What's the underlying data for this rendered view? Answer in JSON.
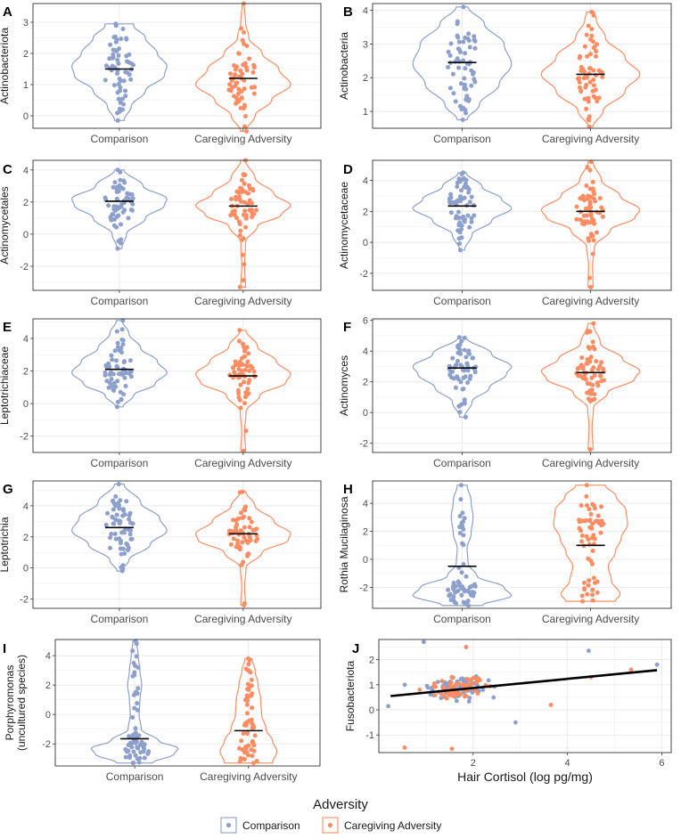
{
  "colors": {
    "comparison": "#8da0cb",
    "adversity": "#fc8d62",
    "grid": "#ebebeb",
    "frame": "#333333",
    "mean": "#000000"
  },
  "legend": {
    "title": "Adversity",
    "items": [
      "Comparison",
      "Caregiving Adversity"
    ]
  },
  "chart_data": [
    {
      "type": "violin",
      "label": "A",
      "ylabel": "Actinobacteriota",
      "categories": [
        "Comparison",
        "Caregiving Adversity"
      ],
      "ylim": [
        -0.4,
        3.6
      ],
      "yticks": [
        0,
        1,
        2,
        3
      ],
      "series": [
        {
          "name": "Comparison",
          "range": [
            -0.15,
            2.95
          ],
          "mean": 1.5,
          "shape": [
            [
              -0.15,
              0.1
            ],
            [
              0.3,
              0.25
            ],
            [
              0.8,
              0.55
            ],
            [
              1.3,
              0.95
            ],
            [
              1.6,
              1.0
            ],
            [
              2.0,
              0.8
            ],
            [
              2.5,
              0.55
            ],
            [
              2.9,
              0.3
            ]
          ],
          "n": 60
        },
        {
          "name": "Caregiving Adversity",
          "range": [
            -0.5,
            3.6
          ],
          "mean": 1.2,
          "shape": [
            [
              -0.5,
              0.05
            ],
            [
              0.0,
              0.25
            ],
            [
              0.5,
              0.6
            ],
            [
              1.0,
              1.0
            ],
            [
              1.5,
              0.75
            ],
            [
              2.0,
              0.4
            ],
            [
              2.5,
              0.12
            ],
            [
              3.0,
              0.05
            ],
            [
              3.6,
              0.02
            ]
          ],
          "n": 58
        }
      ]
    },
    {
      "type": "violin",
      "label": "B",
      "ylabel": "Actinobacteria",
      "categories": [
        "Comparison",
        "Caregiving Adversity"
      ],
      "ylim": [
        0.5,
        4.2
      ],
      "yticks": [
        1,
        2,
        3,
        4
      ],
      "series": [
        {
          "name": "Comparison",
          "range": [
            0.75,
            4.1
          ],
          "mean": 2.45,
          "shape": [
            [
              0.75,
              0.1
            ],
            [
              1.2,
              0.35
            ],
            [
              1.8,
              0.75
            ],
            [
              2.4,
              1.0
            ],
            [
              3.0,
              0.85
            ],
            [
              3.6,
              0.45
            ],
            [
              4.1,
              0.12
            ]
          ],
          "n": 60
        },
        {
          "name": "Caregiving Adversity",
          "range": [
            0.55,
            3.95
          ],
          "mean": 2.1,
          "shape": [
            [
              0.55,
              0.05
            ],
            [
              1.0,
              0.25
            ],
            [
              1.6,
              0.7
            ],
            [
              2.1,
              1.0
            ],
            [
              2.6,
              0.7
            ],
            [
              3.2,
              0.3
            ],
            [
              3.7,
              0.12
            ],
            [
              3.95,
              0.08
            ]
          ],
          "n": 58
        }
      ]
    },
    {
      "type": "violin",
      "label": "C",
      "ylabel": "Actinomycetales",
      "categories": [
        "Comparison",
        "Caregiving Adversity"
      ],
      "ylim": [
        -3.5,
        4.6
      ],
      "yticks": [
        -2,
        0,
        2,
        4
      ],
      "series": [
        {
          "name": "Comparison",
          "range": [
            -0.9,
            4.0
          ],
          "mean": 2.05,
          "shape": [
            [
              -0.9,
              0.05
            ],
            [
              0.0,
              0.15
            ],
            [
              1.0,
              0.55
            ],
            [
              1.8,
              0.95
            ],
            [
              2.2,
              1.0
            ],
            [
              3.0,
              0.5
            ],
            [
              4.0,
              0.1
            ]
          ],
          "n": 60
        },
        {
          "name": "Caregiving Adversity",
          "range": [
            -3.3,
            4.6
          ],
          "mean": 1.75,
          "shape": [
            [
              -3.3,
              0.05
            ],
            [
              -2.0,
              0.03
            ],
            [
              -0.5,
              0.05
            ],
            [
              0.5,
              0.3
            ],
            [
              1.2,
              0.8
            ],
            [
              1.8,
              1.0
            ],
            [
              2.5,
              0.65
            ],
            [
              3.5,
              0.25
            ],
            [
              4.6,
              0.05
            ]
          ],
          "n": 58
        }
      ]
    },
    {
      "type": "violin",
      "label": "D",
      "ylabel": "Actinomycetaceae",
      "categories": [
        "Comparison",
        "Caregiving Adversity"
      ],
      "ylim": [
        -3.1,
        5.3
      ],
      "yticks": [
        -2,
        0,
        2,
        4
      ],
      "series": [
        {
          "name": "Comparison",
          "range": [
            -0.5,
            4.5
          ],
          "mean": 2.35,
          "shape": [
            [
              -0.5,
              0.05
            ],
            [
              0.5,
              0.2
            ],
            [
              1.4,
              0.6
            ],
            [
              2.2,
              1.0
            ],
            [
              2.8,
              0.8
            ],
            [
              3.6,
              0.4
            ],
            [
              4.5,
              0.08
            ]
          ],
          "n": 60
        },
        {
          "name": "Caregiving Adversity",
          "range": [
            -2.9,
            5.2
          ],
          "mean": 2.0,
          "shape": [
            [
              -2.9,
              0.05
            ],
            [
              -1.5,
              0.04
            ],
            [
              -0.3,
              0.08
            ],
            [
              0.8,
              0.4
            ],
            [
              1.6,
              0.9
            ],
            [
              2.1,
              1.0
            ],
            [
              3.0,
              0.6
            ],
            [
              4.0,
              0.22
            ],
            [
              5.2,
              0.05
            ]
          ],
          "n": 58
        }
      ]
    },
    {
      "type": "violin",
      "label": "E",
      "ylabel": "Leptotrichiaceae",
      "categories": [
        "Comparison",
        "Caregiving Adversity"
      ],
      "ylim": [
        -3.0,
        5.2
      ],
      "yticks": [
        -2,
        0,
        2,
        4
      ],
      "series": [
        {
          "name": "Comparison",
          "range": [
            -0.2,
            5.1
          ],
          "mean": 2.1,
          "shape": [
            [
              -0.2,
              0.08
            ],
            [
              0.5,
              0.3
            ],
            [
              1.2,
              0.75
            ],
            [
              1.9,
              1.0
            ],
            [
              2.6,
              0.8
            ],
            [
              3.4,
              0.45
            ],
            [
              4.3,
              0.2
            ],
            [
              5.1,
              0.06
            ]
          ],
          "n": 60
        },
        {
          "name": "Caregiving Adversity",
          "range": [
            -2.9,
            4.5
          ],
          "mean": 1.7,
          "shape": [
            [
              -2.9,
              0.05
            ],
            [
              -1.8,
              0.03
            ],
            [
              -0.5,
              0.06
            ],
            [
              0.5,
              0.35
            ],
            [
              1.3,
              0.9
            ],
            [
              1.8,
              1.0
            ],
            [
              2.6,
              0.7
            ],
            [
              3.5,
              0.3
            ],
            [
              4.5,
              0.06
            ]
          ],
          "n": 58
        }
      ]
    },
    {
      "type": "violin",
      "label": "F",
      "ylabel": "Actinomyces",
      "categories": [
        "Comparison",
        "Caregiving Adversity"
      ],
      "ylim": [
        -2.6,
        6.1
      ],
      "yticks": [
        -2,
        0,
        2,
        4,
        6
      ],
      "series": [
        {
          "name": "Comparison",
          "range": [
            -0.3,
            4.9
          ],
          "mean": 2.9,
          "shape": [
            [
              -0.3,
              0.05
            ],
            [
              0.7,
              0.2
            ],
            [
              1.6,
              0.55
            ],
            [
              2.5,
              0.9
            ],
            [
              3.0,
              1.0
            ],
            [
              3.8,
              0.6
            ],
            [
              4.9,
              0.08
            ]
          ],
          "n": 60
        },
        {
          "name": "Caregiving Adversity",
          "range": [
            -2.4,
            5.8
          ],
          "mean": 2.6,
          "shape": [
            [
              -2.4,
              0.05
            ],
            [
              -1.0,
              0.03
            ],
            [
              0.3,
              0.06
            ],
            [
              1.3,
              0.35
            ],
            [
              2.2,
              0.9
            ],
            [
              2.7,
              1.0
            ],
            [
              3.5,
              0.65
            ],
            [
              4.5,
              0.2
            ],
            [
              5.8,
              0.05
            ]
          ],
          "n": 58
        }
      ]
    },
    {
      "type": "violin",
      "label": "G",
      "ylabel": "Leptotrichia",
      "categories": [
        "Comparison",
        "Caregiving Adversity"
      ],
      "ylim": [
        -2.6,
        5.6
      ],
      "yticks": [
        -2,
        0,
        2,
        4
      ],
      "series": [
        {
          "name": "Comparison",
          "range": [
            -0.2,
            5.4
          ],
          "mean": 2.6,
          "shape": [
            [
              -0.2,
              0.05
            ],
            [
              0.5,
              0.2
            ],
            [
              1.5,
              0.65
            ],
            [
              2.4,
              1.0
            ],
            [
              3.2,
              0.85
            ],
            [
              4.2,
              0.45
            ],
            [
              5.4,
              0.1
            ]
          ],
          "n": 60
        },
        {
          "name": "Caregiving Adversity",
          "range": [
            -2.4,
            4.9
          ],
          "mean": 2.2,
          "shape": [
            [
              -2.4,
              0.05
            ],
            [
              -1.2,
              0.03
            ],
            [
              0.0,
              0.06
            ],
            [
              1.0,
              0.4
            ],
            [
              1.8,
              0.95
            ],
            [
              2.2,
              1.0
            ],
            [
              3.0,
              0.65
            ],
            [
              4.0,
              0.25
            ],
            [
              4.9,
              0.06
            ]
          ],
          "n": 58
        }
      ]
    },
    {
      "type": "violin",
      "label": "H",
      "ylabel": "Rothia Mucilaginosa",
      "categories": [
        "Comparison",
        "Caregiving Adversity"
      ],
      "ylim": [
        -3.5,
        5.6
      ],
      "yticks": [
        -2,
        0,
        2,
        4
      ],
      "series": [
        {
          "name": "Comparison",
          "range": [
            -3.3,
            5.3
          ],
          "mean": -0.5,
          "shape": [
            [
              -3.3,
              0.4
            ],
            [
              -2.6,
              1.0
            ],
            [
              -2.0,
              0.85
            ],
            [
              -1.2,
              0.3
            ],
            [
              -0.3,
              0.12
            ],
            [
              0.8,
              0.1
            ],
            [
              1.8,
              0.18
            ],
            [
              3.0,
              0.22
            ],
            [
              4.2,
              0.18
            ],
            [
              5.3,
              0.1
            ]
          ],
          "n": 60
        },
        {
          "name": "Caregiving Adversity",
          "range": [
            -3.0,
            5.3
          ],
          "mean": 1.0,
          "shape": [
            [
              -3.0,
              0.5
            ],
            [
              -2.5,
              0.6
            ],
            [
              -1.5,
              0.42
            ],
            [
              -0.5,
              0.36
            ],
            [
              0.5,
              0.5
            ],
            [
              1.5,
              0.62
            ],
            [
              2.5,
              0.75
            ],
            [
              3.5,
              0.72
            ],
            [
              4.5,
              0.52
            ],
            [
              5.3,
              0.3
            ]
          ],
          "n": 58
        }
      ]
    },
    {
      "type": "violin",
      "label": "I",
      "ylabel": "Porphyromonas (uncultured species)",
      "categories": [
        "Comparison",
        "Caregiving Adversity"
      ],
      "ylim": [
        -3.5,
        5.1
      ],
      "yticks": [
        -2,
        0,
        2,
        4
      ],
      "series": [
        {
          "name": "Comparison",
          "range": [
            -3.3,
            5.0
          ],
          "mean": -1.65,
          "shape": [
            [
              -3.3,
              0.4
            ],
            [
              -2.7,
              0.9
            ],
            [
              -2.3,
              1.0
            ],
            [
              -1.8,
              0.55
            ],
            [
              -1.0,
              0.15
            ],
            [
              0.0,
              0.1
            ],
            [
              1.0,
              0.12
            ],
            [
              2.0,
              0.16
            ],
            [
              3.0,
              0.12
            ],
            [
              4.0,
              0.08
            ],
            [
              5.0,
              0.04
            ]
          ],
          "n": 60
        },
        {
          "name": "Caregiving Adversity",
          "range": [
            -3.3,
            3.8
          ],
          "mean": -1.1,
          "shape": [
            [
              -3.3,
              0.55
            ],
            [
              -2.5,
              0.65
            ],
            [
              -1.8,
              0.55
            ],
            [
              -1.0,
              0.4
            ],
            [
              0.0,
              0.3
            ],
            [
              1.0,
              0.28
            ],
            [
              2.0,
              0.22
            ],
            [
              3.0,
              0.15
            ],
            [
              3.8,
              0.08
            ]
          ],
          "n": 58
        }
      ]
    },
    {
      "type": "scatter",
      "label": "J",
      "xlabel": "Hair Cortisol (log pg/mg)",
      "ylabel": "Fusobacteriota",
      "xlim": [
        0.0,
        6.2
      ],
      "ylim": [
        -1.7,
        2.8
      ],
      "xticks": [
        2,
        4,
        6
      ],
      "yticks": [
        -1,
        0,
        1,
        2
      ],
      "series": [
        {
          "name": "Comparison",
          "n": 80,
          "extra_points": [
            [
              0.95,
              2.7
            ],
            [
              4.45,
              2.35
            ],
            [
              5.9,
              1.8
            ],
            [
              0.55,
              1.0
            ],
            [
              2.9,
              -0.5
            ],
            [
              0.2,
              0.15
            ]
          ]
        },
        {
          "name": "Caregiving Adversity",
          "n": 60,
          "extra_points": [
            [
              1.85,
              2.5
            ],
            [
              0.55,
              -1.5
            ],
            [
              1.55,
              -1.55
            ],
            [
              3.65,
              0.2
            ],
            [
              5.35,
              1.6
            ],
            [
              4.5,
              1.3
            ]
          ]
        }
      ],
      "regression": {
        "x": [
          0.25,
          5.9
        ],
        "y": [
          0.55,
          1.58
        ]
      }
    }
  ]
}
